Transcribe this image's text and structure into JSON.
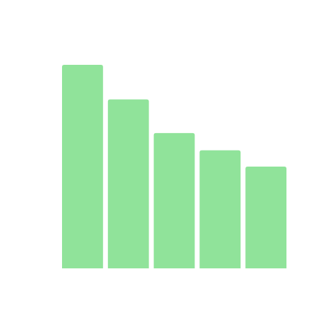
{
  "chart_data": {
    "type": "bar",
    "categories": [
      "",
      "",
      "",
      "",
      ""
    ],
    "values": [
      100,
      83,
      66.5,
      58,
      50
    ],
    "ylim": [
      0,
      100
    ],
    "grid": false,
    "legend": "none",
    "colors": {
      "bar": "#90E39A",
      "background": "#FFFFFF"
    }
  }
}
